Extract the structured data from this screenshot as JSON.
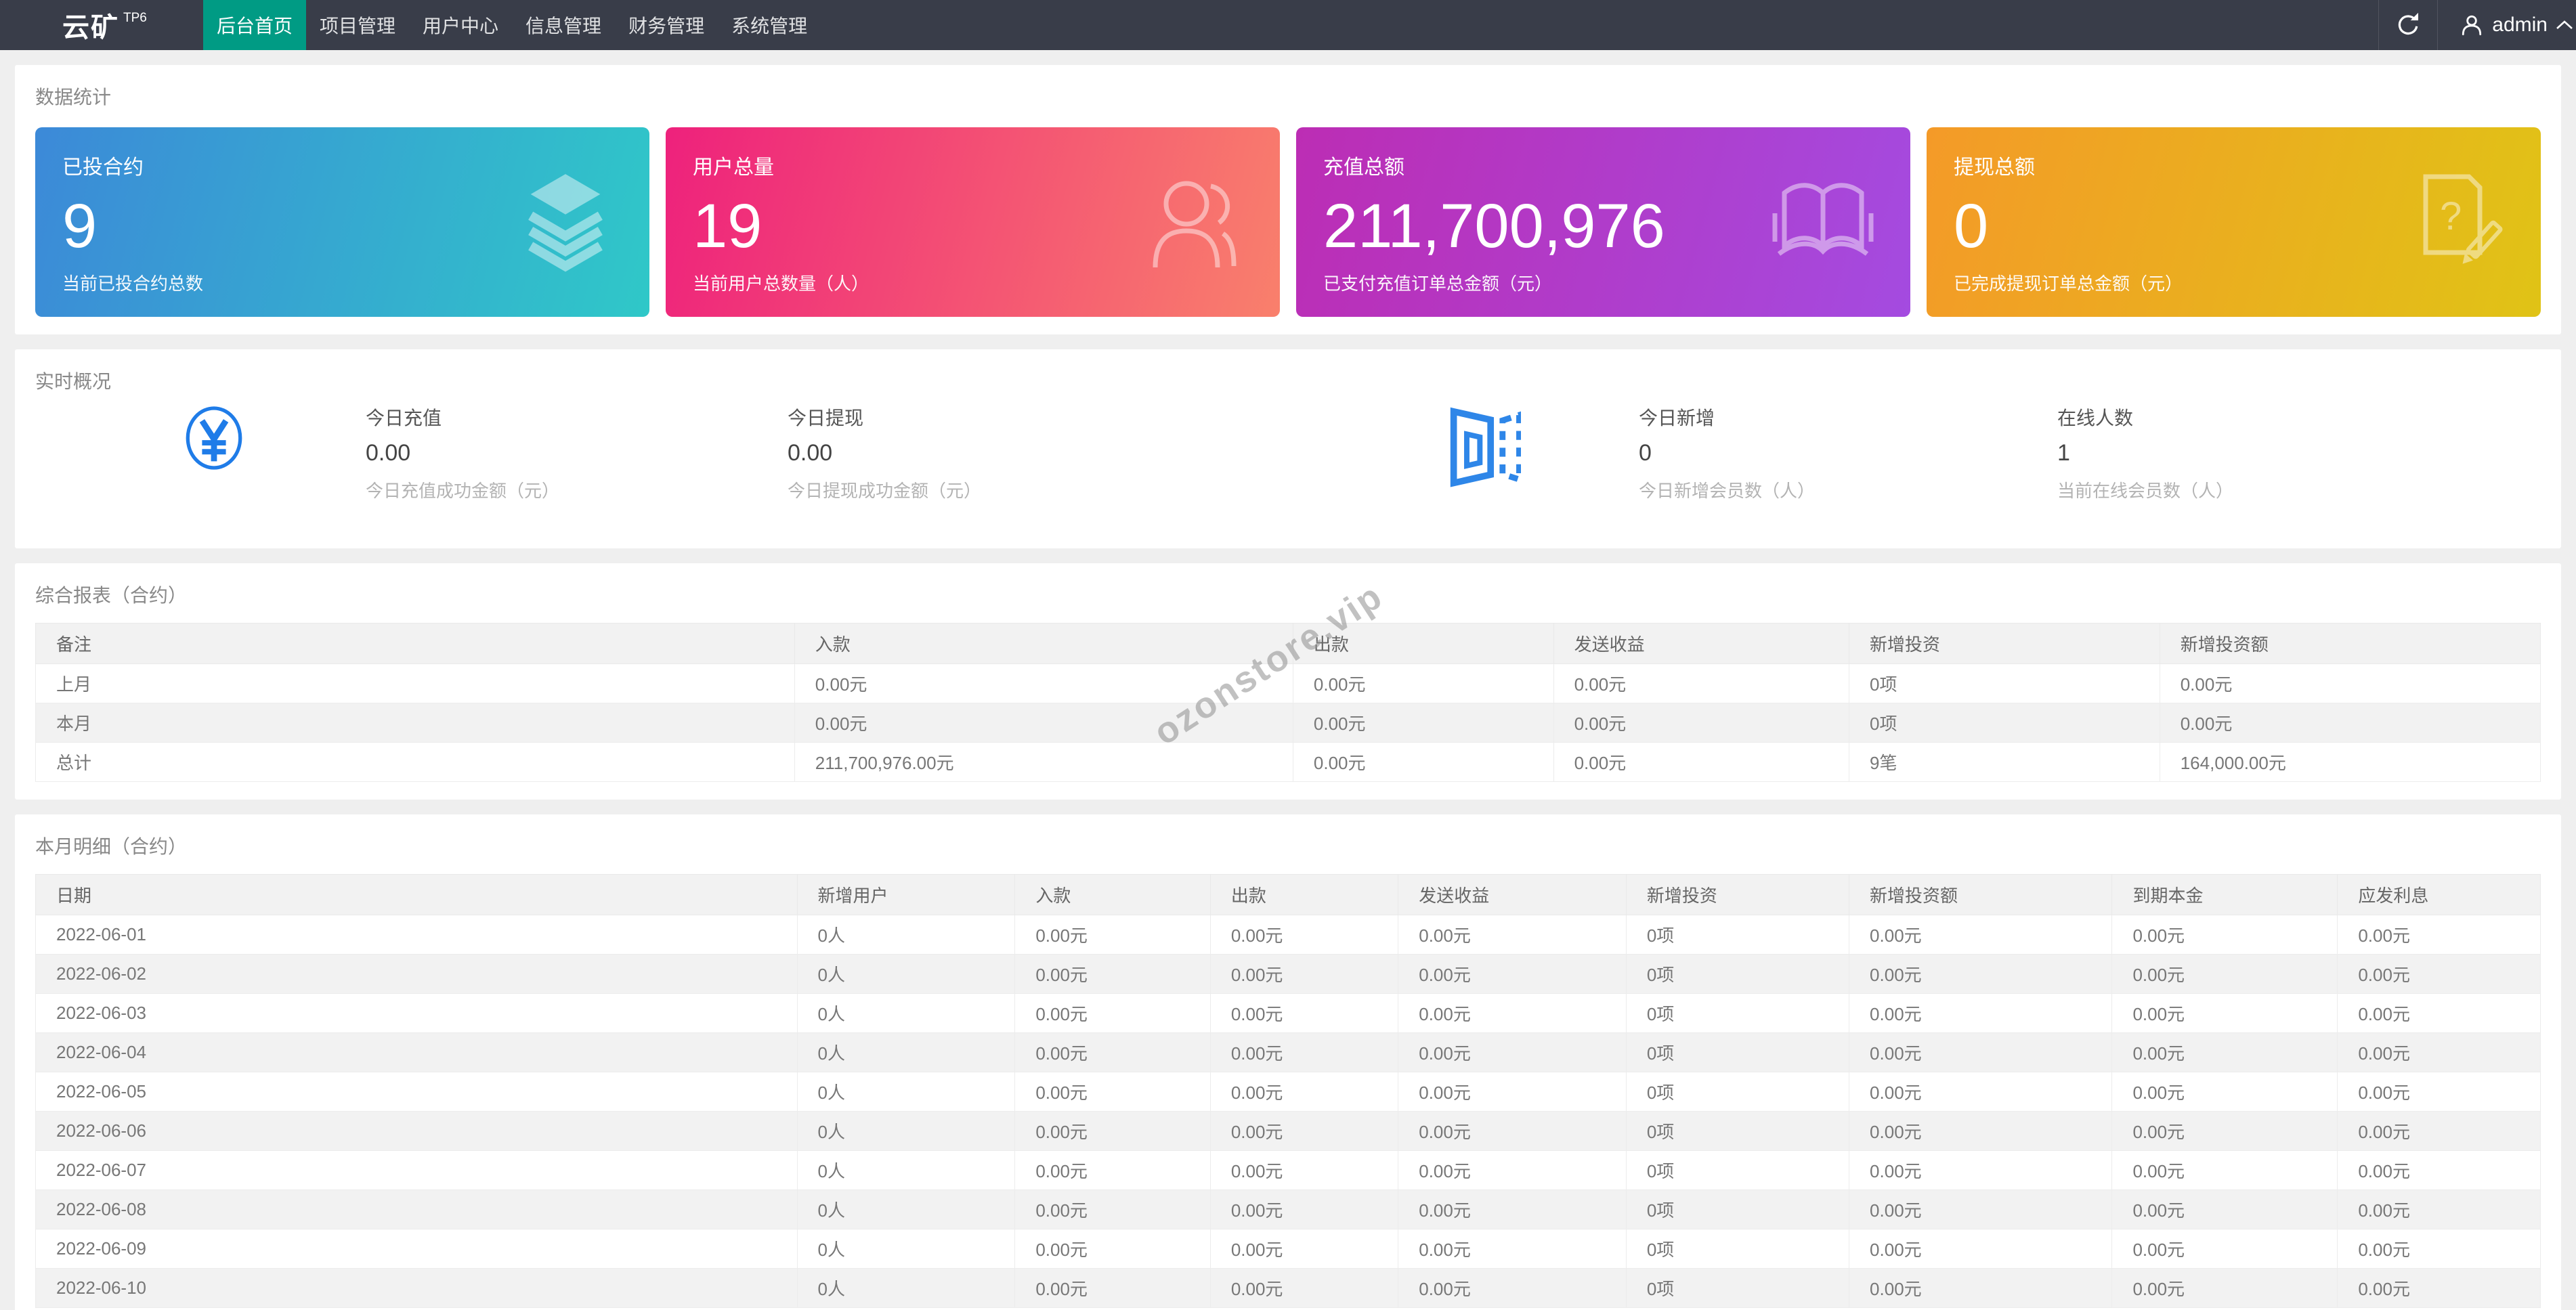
{
  "navbar": {
    "logo": "云矿",
    "logo_sup": "TP6",
    "items": [
      {
        "label": "后台首页",
        "active": true
      },
      {
        "label": "项目管理",
        "active": false
      },
      {
        "label": "用户中心",
        "active": false
      },
      {
        "label": "信息管理",
        "active": false
      },
      {
        "label": "财务管理",
        "active": false
      },
      {
        "label": "系统管理",
        "active": false
      }
    ],
    "admin_name": "admin",
    "colors": {
      "bar_bg": "#393D49",
      "active_tab": "#009B84"
    }
  },
  "stats": {
    "title": "数据统计",
    "cards": [
      {
        "label": "已投合约",
        "value": "9",
        "caption": "当前已投合约总数",
        "icon": "layers-icon",
        "gradient_from": "#3C89D8",
        "gradient_to": "#2FC8C8"
      },
      {
        "label": "用户总量",
        "value": "19",
        "caption": "当前用户总数量（人）",
        "icon": "users-icon",
        "gradient_from": "#EE217C",
        "gradient_to": "#F9806C"
      },
      {
        "label": "充值总额",
        "value": "211,700,976",
        "caption": "已支付充值订单总金额（元）",
        "icon": "open-book-icon",
        "gradient_from": "#BC2DB4",
        "gradient_to": "#A44BE0"
      },
      {
        "label": "提现总额",
        "value": "0",
        "caption": "已完成提现订单总金额（元）",
        "icon": "document-question-icon",
        "gradient_from": "#F49A28",
        "gradient_to": "#E0C316"
      }
    ]
  },
  "overview": {
    "title": "实时概况",
    "icons": [
      "yen-circle-icon",
      "open-door-icon"
    ],
    "icon_color": "#2E86E8",
    "items": [
      {
        "label": "今日充值",
        "value": "0.00",
        "caption": "今日充值成功金额（元）"
      },
      {
        "label": "今日提现",
        "value": "0.00",
        "caption": "今日提现成功金额（元）"
      },
      {
        "label": "今日新增",
        "value": "0",
        "caption": "今日新增会员数（人）"
      },
      {
        "label": "在线人数",
        "value": "1",
        "caption": "当前在线会员数（人）"
      }
    ]
  },
  "report": {
    "title": "综合报表（合约）",
    "columns": [
      "备注",
      "入款",
      "出款",
      "发送收益",
      "新增投资",
      "新增投资额"
    ],
    "rows": [
      [
        "上月",
        "0.00元",
        "0.00元",
        "0.00元",
        "0项",
        "0.00元"
      ],
      [
        "本月",
        "0.00元",
        "0.00元",
        "0.00元",
        "0项",
        "0.00元"
      ],
      [
        "总计",
        "211,700,976.00元",
        "0.00元",
        "0.00元",
        "9笔",
        "164,000.00元"
      ]
    ]
  },
  "detail": {
    "title": "本月明细（合约）",
    "columns": [
      "日期",
      "新增用户",
      "入款",
      "出款",
      "发送收益",
      "新增投资",
      "新增投资额",
      "到期本金",
      "应发利息"
    ],
    "rows": [
      [
        "2022-06-01",
        "0人",
        "0.00元",
        "0.00元",
        "0.00元",
        "0项",
        "0.00元",
        "0.00元",
        "0.00元"
      ],
      [
        "2022-06-02",
        "0人",
        "0.00元",
        "0.00元",
        "0.00元",
        "0项",
        "0.00元",
        "0.00元",
        "0.00元"
      ],
      [
        "2022-06-03",
        "0人",
        "0.00元",
        "0.00元",
        "0.00元",
        "0项",
        "0.00元",
        "0.00元",
        "0.00元"
      ],
      [
        "2022-06-04",
        "0人",
        "0.00元",
        "0.00元",
        "0.00元",
        "0项",
        "0.00元",
        "0.00元",
        "0.00元"
      ],
      [
        "2022-06-05",
        "0人",
        "0.00元",
        "0.00元",
        "0.00元",
        "0项",
        "0.00元",
        "0.00元",
        "0.00元"
      ],
      [
        "2022-06-06",
        "0人",
        "0.00元",
        "0.00元",
        "0.00元",
        "0项",
        "0.00元",
        "0.00元",
        "0.00元"
      ],
      [
        "2022-06-07",
        "0人",
        "0.00元",
        "0.00元",
        "0.00元",
        "0项",
        "0.00元",
        "0.00元",
        "0.00元"
      ],
      [
        "2022-06-08",
        "0人",
        "0.00元",
        "0.00元",
        "0.00元",
        "0项",
        "0.00元",
        "0.00元",
        "0.00元"
      ],
      [
        "2022-06-09",
        "0人",
        "0.00元",
        "0.00元",
        "0.00元",
        "0项",
        "0.00元",
        "0.00元",
        "0.00元"
      ],
      [
        "2022-06-10",
        "0人",
        "0.00元",
        "0.00元",
        "0.00元",
        "0项",
        "0.00元",
        "0.00元",
        "0.00元"
      ]
    ]
  },
  "watermark": "ozonstore.vip"
}
